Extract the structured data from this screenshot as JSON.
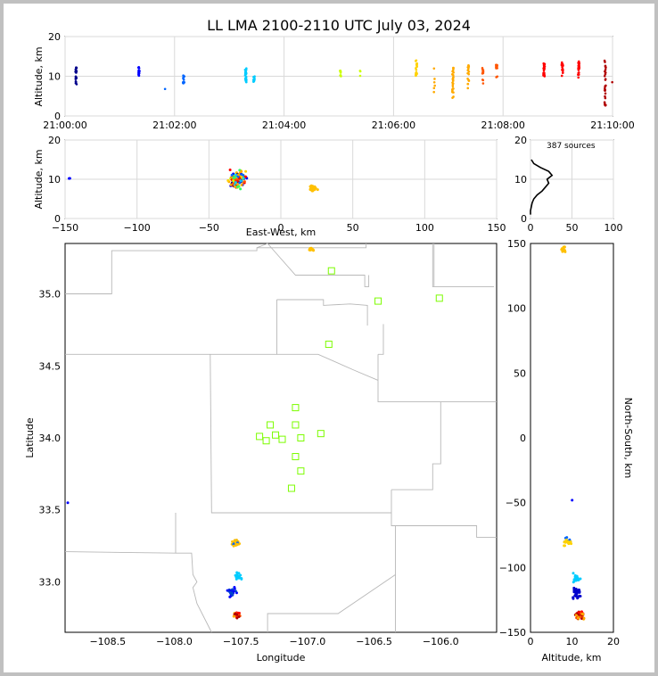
{
  "title": "LL LMA 2100-2110 UTC July 03, 2024",
  "source_count_label": "387 sources",
  "chart_data": [
    {
      "id": "time-altitude",
      "type": "scatter",
      "ylabel": "Altitude, km",
      "xlim": [
        "21:00:00",
        "21:10:00"
      ],
      "ylim": [
        0,
        20
      ],
      "grid": true,
      "x_ticks": [
        "21:00:00",
        "21:02:00",
        "21:04:00",
        "21:06:00",
        "21:08:00",
        "21:10:00"
      ],
      "y_ticks": [
        "0",
        "10",
        "20"
      ],
      "color_encoding": "time (blue to red)",
      "clusters": [
        {
          "time_s": 12,
          "alt_min": 8,
          "alt_max": 12.5,
          "n": 22
        },
        {
          "time_s": 81,
          "alt_min": 9,
          "alt_max": 12.5,
          "n": 18
        },
        {
          "time_s": 109,
          "alt_min": 6.8,
          "alt_max": 6.8,
          "n": 1
        },
        {
          "time_s": 130,
          "alt_min": 8.2,
          "alt_max": 10.2,
          "n": 12
        },
        {
          "time_s": 198,
          "alt_min": 8.5,
          "alt_max": 12,
          "n": 30
        },
        {
          "time_s": 207,
          "alt_min": 7.5,
          "alt_max": 10,
          "n": 8
        },
        {
          "time_s": 302,
          "alt_min": 9.5,
          "alt_max": 12,
          "n": 8
        },
        {
          "time_s": 323,
          "alt_min": 10,
          "alt_max": 11.5,
          "n": 3
        },
        {
          "time_s": 385,
          "alt_min": 10,
          "alt_max": 14,
          "n": 18
        },
        {
          "time_s": 405,
          "alt_min": 6,
          "alt_max": 12,
          "n": 6
        },
        {
          "time_s": 425,
          "alt_min": 2.5,
          "alt_max": 12.5,
          "n": 28
        },
        {
          "time_s": 442,
          "alt_min": 7,
          "alt_max": 13,
          "n": 16
        },
        {
          "time_s": 458,
          "alt_min": 8,
          "alt_max": 12.5,
          "n": 10
        },
        {
          "time_s": 473,
          "alt_min": 9.5,
          "alt_max": 13,
          "n": 12
        },
        {
          "time_s": 525,
          "alt_min": 10,
          "alt_max": 14,
          "n": 22
        },
        {
          "time_s": 545,
          "alt_min": 10,
          "alt_max": 13.5,
          "n": 16
        },
        {
          "time_s": 563,
          "alt_min": 9.5,
          "alt_max": 14,
          "n": 24
        },
        {
          "time_s": 592,
          "alt_min": 1.5,
          "alt_max": 14,
          "n": 26
        },
        {
          "time_s": 599,
          "alt_min": 8.5,
          "alt_max": 8.5,
          "n": 1
        }
      ]
    },
    {
      "id": "ew-altitude",
      "type": "scatter",
      "xlabel": "East-West, km",
      "ylabel": "Altitude, km",
      "xlim": [
        -150,
        150
      ],
      "ylim": [
        0,
        20
      ],
      "grid": true,
      "x_ticks": [
        "−150",
        "−100",
        "−50",
        "0",
        "50",
        "100",
        "150"
      ],
      "y_ticks": [
        "0",
        "10",
        "20"
      ],
      "clusters": [
        {
          "x": -30,
          "y": 10,
          "spread_x": 8,
          "spread_y": 3,
          "n": 150
        },
        {
          "x": 22,
          "y": 7.5,
          "spread_x": 5,
          "spread_y": 1,
          "n": 25
        },
        {
          "x": -147,
          "y": 10.2,
          "spread_x": 1,
          "spread_y": 0.3,
          "n": 2
        }
      ]
    },
    {
      "id": "altitude-histogram",
      "type": "line",
      "xlim": [
        0,
        100
      ],
      "ylim": [
        0,
        20
      ],
      "x_ticks": [
        "0",
        "50",
        "100"
      ],
      "y_ticks": [
        "0",
        "10",
        "20"
      ],
      "altitude_km": [
        1,
        2,
        3,
        4,
        5,
        6,
        7,
        8,
        9,
        10,
        11,
        12,
        13,
        14,
        15
      ],
      "counts": [
        0,
        0,
        1,
        2,
        4,
        8,
        14,
        18,
        22,
        20,
        26,
        22,
        12,
        4,
        1
      ]
    },
    {
      "id": "plan-view",
      "type": "scatter",
      "xlabel": "Longitude",
      "ylabel": "Latitude",
      "xlim": [
        -108.82,
        -105.58
      ],
      "ylim": [
        32.65,
        35.35
      ],
      "x_ticks": [
        "−108.5",
        "−108.0",
        "−107.5",
        "−107.0",
        "−106.5",
        "−106.0"
      ],
      "y_ticks": [
        "33.0",
        "33.5",
        "34.0",
        "34.5",
        "35.0"
      ],
      "stations": [
        [
          -106.82,
          35.16
        ],
        [
          -106.47,
          34.95
        ],
        [
          -106.01,
          34.97
        ],
        [
          -106.84,
          34.65
        ],
        [
          -107.09,
          34.21
        ],
        [
          -107.28,
          34.09
        ],
        [
          -107.09,
          34.09
        ],
        [
          -107.36,
          34.01
        ],
        [
          -107.24,
          34.02
        ],
        [
          -107.31,
          33.98
        ],
        [
          -107.19,
          33.99
        ],
        [
          -107.05,
          34.0
        ],
        [
          -106.9,
          34.03
        ],
        [
          -107.09,
          33.87
        ],
        [
          -107.05,
          33.77
        ],
        [
          -107.12,
          33.65
        ]
      ],
      "clusters": [
        {
          "lon": -107.54,
          "lat": 33.27,
          "spread": 0.04,
          "n": 30
        },
        {
          "lon": -107.52,
          "lat": 33.04,
          "spread": 0.04,
          "n": 18
        },
        {
          "lon": -107.57,
          "lat": 32.93,
          "spread": 0.05,
          "n": 35
        },
        {
          "lon": -107.53,
          "lat": 32.77,
          "spread": 0.03,
          "n": 60
        },
        {
          "lon": -106.97,
          "lat": 35.31,
          "spread": 0.03,
          "n": 15
        },
        {
          "lon": -108.8,
          "lat": 33.55,
          "spread": 0.005,
          "n": 1
        }
      ]
    },
    {
      "id": "altitude-ns",
      "type": "scatter",
      "xlabel": "Altitude, km",
      "ylabel": "North-South, km",
      "xlim": [
        0,
        20
      ],
      "ylim": [
        -150,
        150
      ],
      "x_ticks": [
        "0",
        "10",
        "20"
      ],
      "y_ticks": [
        "−150",
        "−100",
        "−50",
        "0",
        "50",
        "100",
        "150"
      ],
      "clusters": [
        {
          "alt": 8,
          "ns": 145,
          "spread_a": 0.6,
          "spread_n": 3,
          "n": 15
        },
        {
          "alt": 9,
          "ns": -80,
          "spread_a": 1.5,
          "spread_n": 5,
          "n": 30
        },
        {
          "alt": 11,
          "ns": -108,
          "spread_a": 1.2,
          "spread_n": 5,
          "n": 20
        },
        {
          "alt": 11,
          "ns": -120,
          "spread_a": 1.5,
          "spread_n": 6,
          "n": 35
        },
        {
          "alt": 12,
          "ns": -137,
          "spread_a": 1.5,
          "spread_n": 4,
          "n": 60
        },
        {
          "alt": 10,
          "ns": -48,
          "spread_a": 0.1,
          "spread_n": 0.5,
          "n": 1
        }
      ]
    }
  ],
  "colors": {
    "station": "#7cfc00",
    "grid": "#d9d9d9",
    "county_lines": "#b8b8b8",
    "time_scale": [
      "#00008b",
      "#0000ff",
      "#0066ff",
      "#00ccff",
      "#33ff66",
      "#ccff00",
      "#ffd200",
      "#ffaa00",
      "#ff5500",
      "#ff0000",
      "#b00000"
    ]
  }
}
